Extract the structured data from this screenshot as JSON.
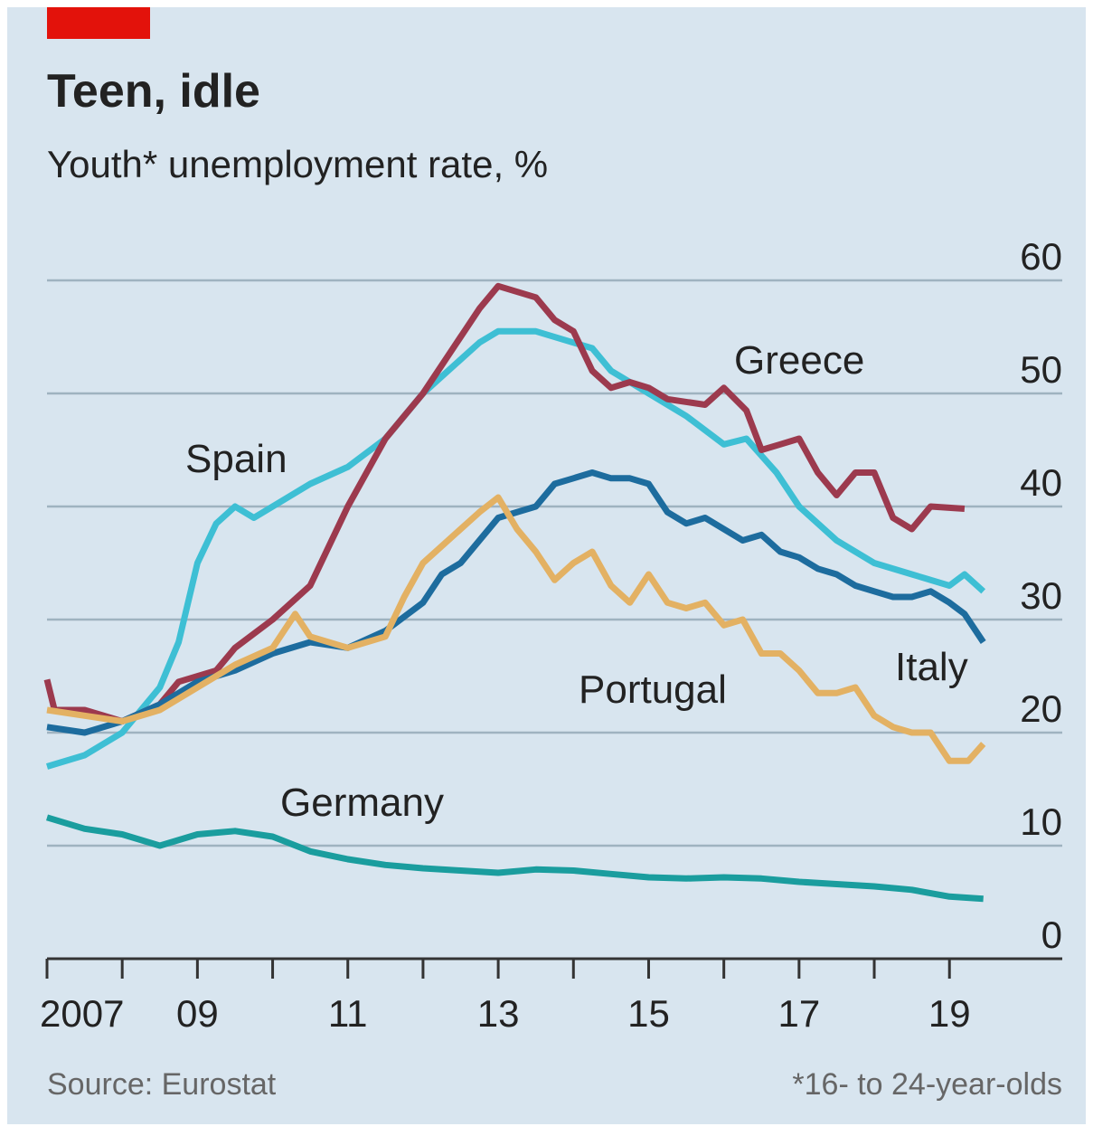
{
  "chart_data": {
    "type": "line",
    "title": "Teen, idle",
    "subtitle": "Youth* unemployment rate, %",
    "source": "Source: Eurostat",
    "footnote": "*16- to 24-year-olds",
    "xlim": [
      2007,
      2020.5
    ],
    "xticks": [
      {
        "value": 2007,
        "label": "2007"
      },
      {
        "value": 2009,
        "label": "09"
      },
      {
        "value": 2011,
        "label": "11"
      },
      {
        "value": 2013,
        "label": "13"
      },
      {
        "value": 2015,
        "label": "15"
      },
      {
        "value": 2017,
        "label": "17"
      },
      {
        "value": 2019,
        "label": "19"
      }
    ],
    "xminorticks": [
      2008,
      2010,
      2012,
      2014,
      2016,
      2018
    ],
    "ylim": [
      0,
      60
    ],
    "yticks": [
      0,
      10,
      20,
      30,
      40,
      50,
      60
    ],
    "grid": true,
    "series": [
      {
        "name": "Spain",
        "color": "#3ebfd4",
        "x": [
          2007,
          2007.5,
          2008,
          2008.5,
          2008.75,
          2009,
          2009.25,
          2009.5,
          2009.75,
          2010,
          2010.5,
          2011,
          2011.5,
          2012,
          2012.5,
          2012.75,
          2013,
          2013.5,
          2014,
          2014.25,
          2014.5,
          2015,
          2015.5,
          2016,
          2016.3,
          2016.7,
          2017,
          2017.5,
          2018,
          2018.5,
          2019,
          2019.2,
          2019.45
        ],
        "values": [
          17,
          18,
          20,
          24,
          28,
          35,
          38.5,
          40,
          39,
          40,
          42,
          43.5,
          46,
          50,
          53,
          54.5,
          55.5,
          55.5,
          54.5,
          54,
          52,
          50,
          48,
          45.5,
          46,
          43,
          40,
          37,
          35,
          34,
          33,
          34,
          32.5
        ]
      },
      {
        "name": "Greece",
        "color": "#9c3a4e",
        "x": [
          2007,
          2007.1,
          2007.5,
          2008,
          2008.5,
          2008.75,
          2009.25,
          2009.5,
          2010,
          2010.5,
          2010.75,
          2011,
          2011.5,
          2012,
          2012.5,
          2012.75,
          2013,
          2013.5,
          2013.75,
          2014,
          2014.25,
          2014.5,
          2014.75,
          2015,
          2015.25,
          2015.75,
          2016,
          2016.3,
          2016.5,
          2016.75,
          2017,
          2017.25,
          2017.5,
          2017.75,
          2018,
          2018.25,
          2018.5,
          2018.75,
          2019.2
        ],
        "values": [
          24.7,
          22,
          22,
          21,
          22.5,
          24.5,
          25.5,
          27.5,
          30,
          33,
          36.5,
          40,
          46,
          50,
          55,
          57.5,
          59.5,
          58.5,
          56.5,
          55.5,
          52,
          50.5,
          51,
          50.5,
          49.5,
          49,
          50.5,
          48.5,
          45,
          45.5,
          46,
          43,
          41,
          43,
          43,
          39,
          38,
          40,
          39.8
        ]
      },
      {
        "name": "Italy",
        "color": "#1d6c9e",
        "x": [
          2007,
          2007.5,
          2008,
          2008.5,
          2009,
          2009.5,
          2010,
          2010.5,
          2011,
          2011.5,
          2012,
          2012.25,
          2012.5,
          2012.75,
          2013,
          2013.5,
          2013.75,
          2014,
          2014.25,
          2014.5,
          2014.75,
          2015,
          2015.25,
          2015.5,
          2015.75,
          2016,
          2016.25,
          2016.5,
          2016.75,
          2017,
          2017.25,
          2017.5,
          2017.75,
          2018,
          2018.25,
          2018.5,
          2018.75,
          2019,
          2019.2,
          2019.45
        ],
        "values": [
          20.5,
          20,
          21,
          22.5,
          24.5,
          25.5,
          27,
          28,
          27.5,
          29,
          31.5,
          34,
          35,
          37,
          39,
          40,
          42,
          42.5,
          43,
          42.5,
          42.5,
          42,
          39.5,
          38.5,
          39,
          38,
          37,
          37.5,
          36,
          35.5,
          34.5,
          34,
          33,
          32.5,
          32,
          32,
          32.5,
          31.5,
          30.5,
          28
        ]
      },
      {
        "name": "Portugal",
        "color": "#e3b163",
        "x": [
          2007,
          2007.5,
          2008,
          2008.5,
          2009,
          2009.5,
          2010,
          2010.3,
          2010.5,
          2011,
          2011.5,
          2011.75,
          2012,
          2012.5,
          2012.75,
          2013,
          2013.25,
          2013.5,
          2013.75,
          2014,
          2014.25,
          2014.5,
          2014.75,
          2015,
          2015.25,
          2015.5,
          2015.75,
          2016,
          2016.25,
          2016.5,
          2016.75,
          2017,
          2017.25,
          2017.5,
          2017.75,
          2018,
          2018.25,
          2018.5,
          2018.75,
          2019,
          2019.25,
          2019.45
        ],
        "values": [
          22,
          21.5,
          21,
          22,
          24,
          26,
          27.5,
          30.5,
          28.5,
          27.5,
          28.5,
          32,
          35,
          38,
          39.5,
          40.8,
          38,
          36,
          33.5,
          35,
          36,
          33,
          31.5,
          34,
          31.5,
          31,
          31.5,
          29.5,
          30,
          27,
          27,
          25.5,
          23.5,
          23.5,
          24,
          21.5,
          20.5,
          20,
          20,
          17.5,
          17.5,
          19
        ]
      },
      {
        "name": "Germany",
        "color": "#1a9d9e",
        "x": [
          2007,
          2007.5,
          2008,
          2008.5,
          2009,
          2009.5,
          2010,
          2010.5,
          2011,
          2011.5,
          2012,
          2012.5,
          2013,
          2013.5,
          2014,
          2014.5,
          2015,
          2015.5,
          2016,
          2016.5,
          2017,
          2017.5,
          2018,
          2018.5,
          2019,
          2019.45
        ],
        "values": [
          12.5,
          11.5,
          11,
          10,
          11,
          11.3,
          10.8,
          9.5,
          8.8,
          8.3,
          8,
          7.8,
          7.6,
          7.9,
          7.8,
          7.5,
          7.2,
          7.1,
          7.2,
          7.1,
          6.8,
          6.6,
          6.4,
          6.1,
          5.5,
          5.3
        ]
      }
    ]
  }
}
